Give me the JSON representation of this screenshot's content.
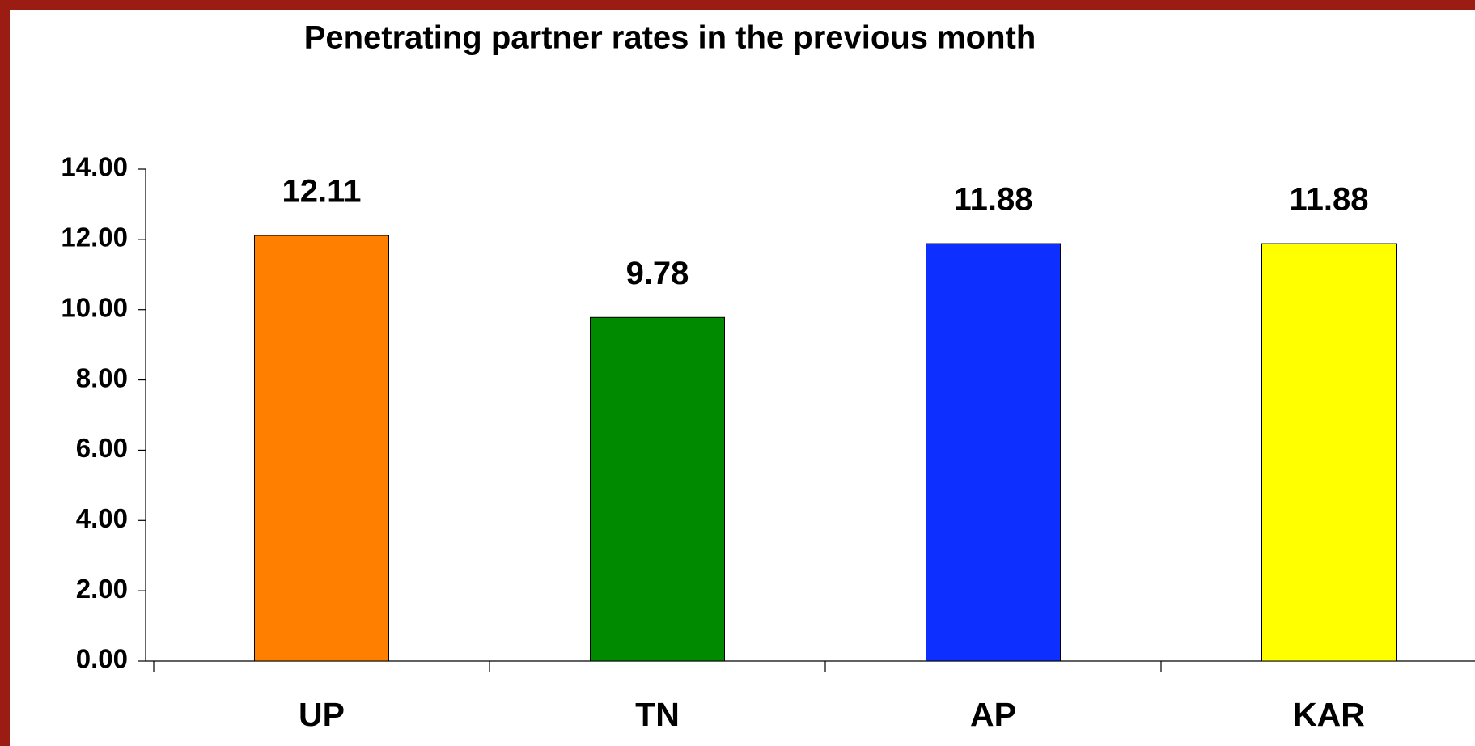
{
  "chart_data": {
    "type": "bar",
    "title": "Penetrating partner rates in the previous month",
    "categories": [
      "UP",
      "TN",
      "AP",
      "KAR"
    ],
    "values": [
      12.11,
      9.78,
      11.88,
      11.88
    ],
    "colors": [
      "#ff7f00",
      "#008a00",
      "#0d2fff",
      "#ffff00"
    ],
    "ylim": [
      0,
      14
    ],
    "yticks": [
      {
        "value": 0,
        "label": "0.00"
      },
      {
        "value": 2,
        "label": "2.00"
      },
      {
        "value": 4,
        "label": "4.00"
      },
      {
        "value": 6,
        "label": "6.00"
      },
      {
        "value": 8,
        "label": "8.00"
      },
      {
        "value": 10,
        "label": "10.00"
      },
      {
        "value": 12,
        "label": "12.00"
      },
      {
        "value": 14,
        "label": "14.00"
      }
    ],
    "grid": false
  }
}
